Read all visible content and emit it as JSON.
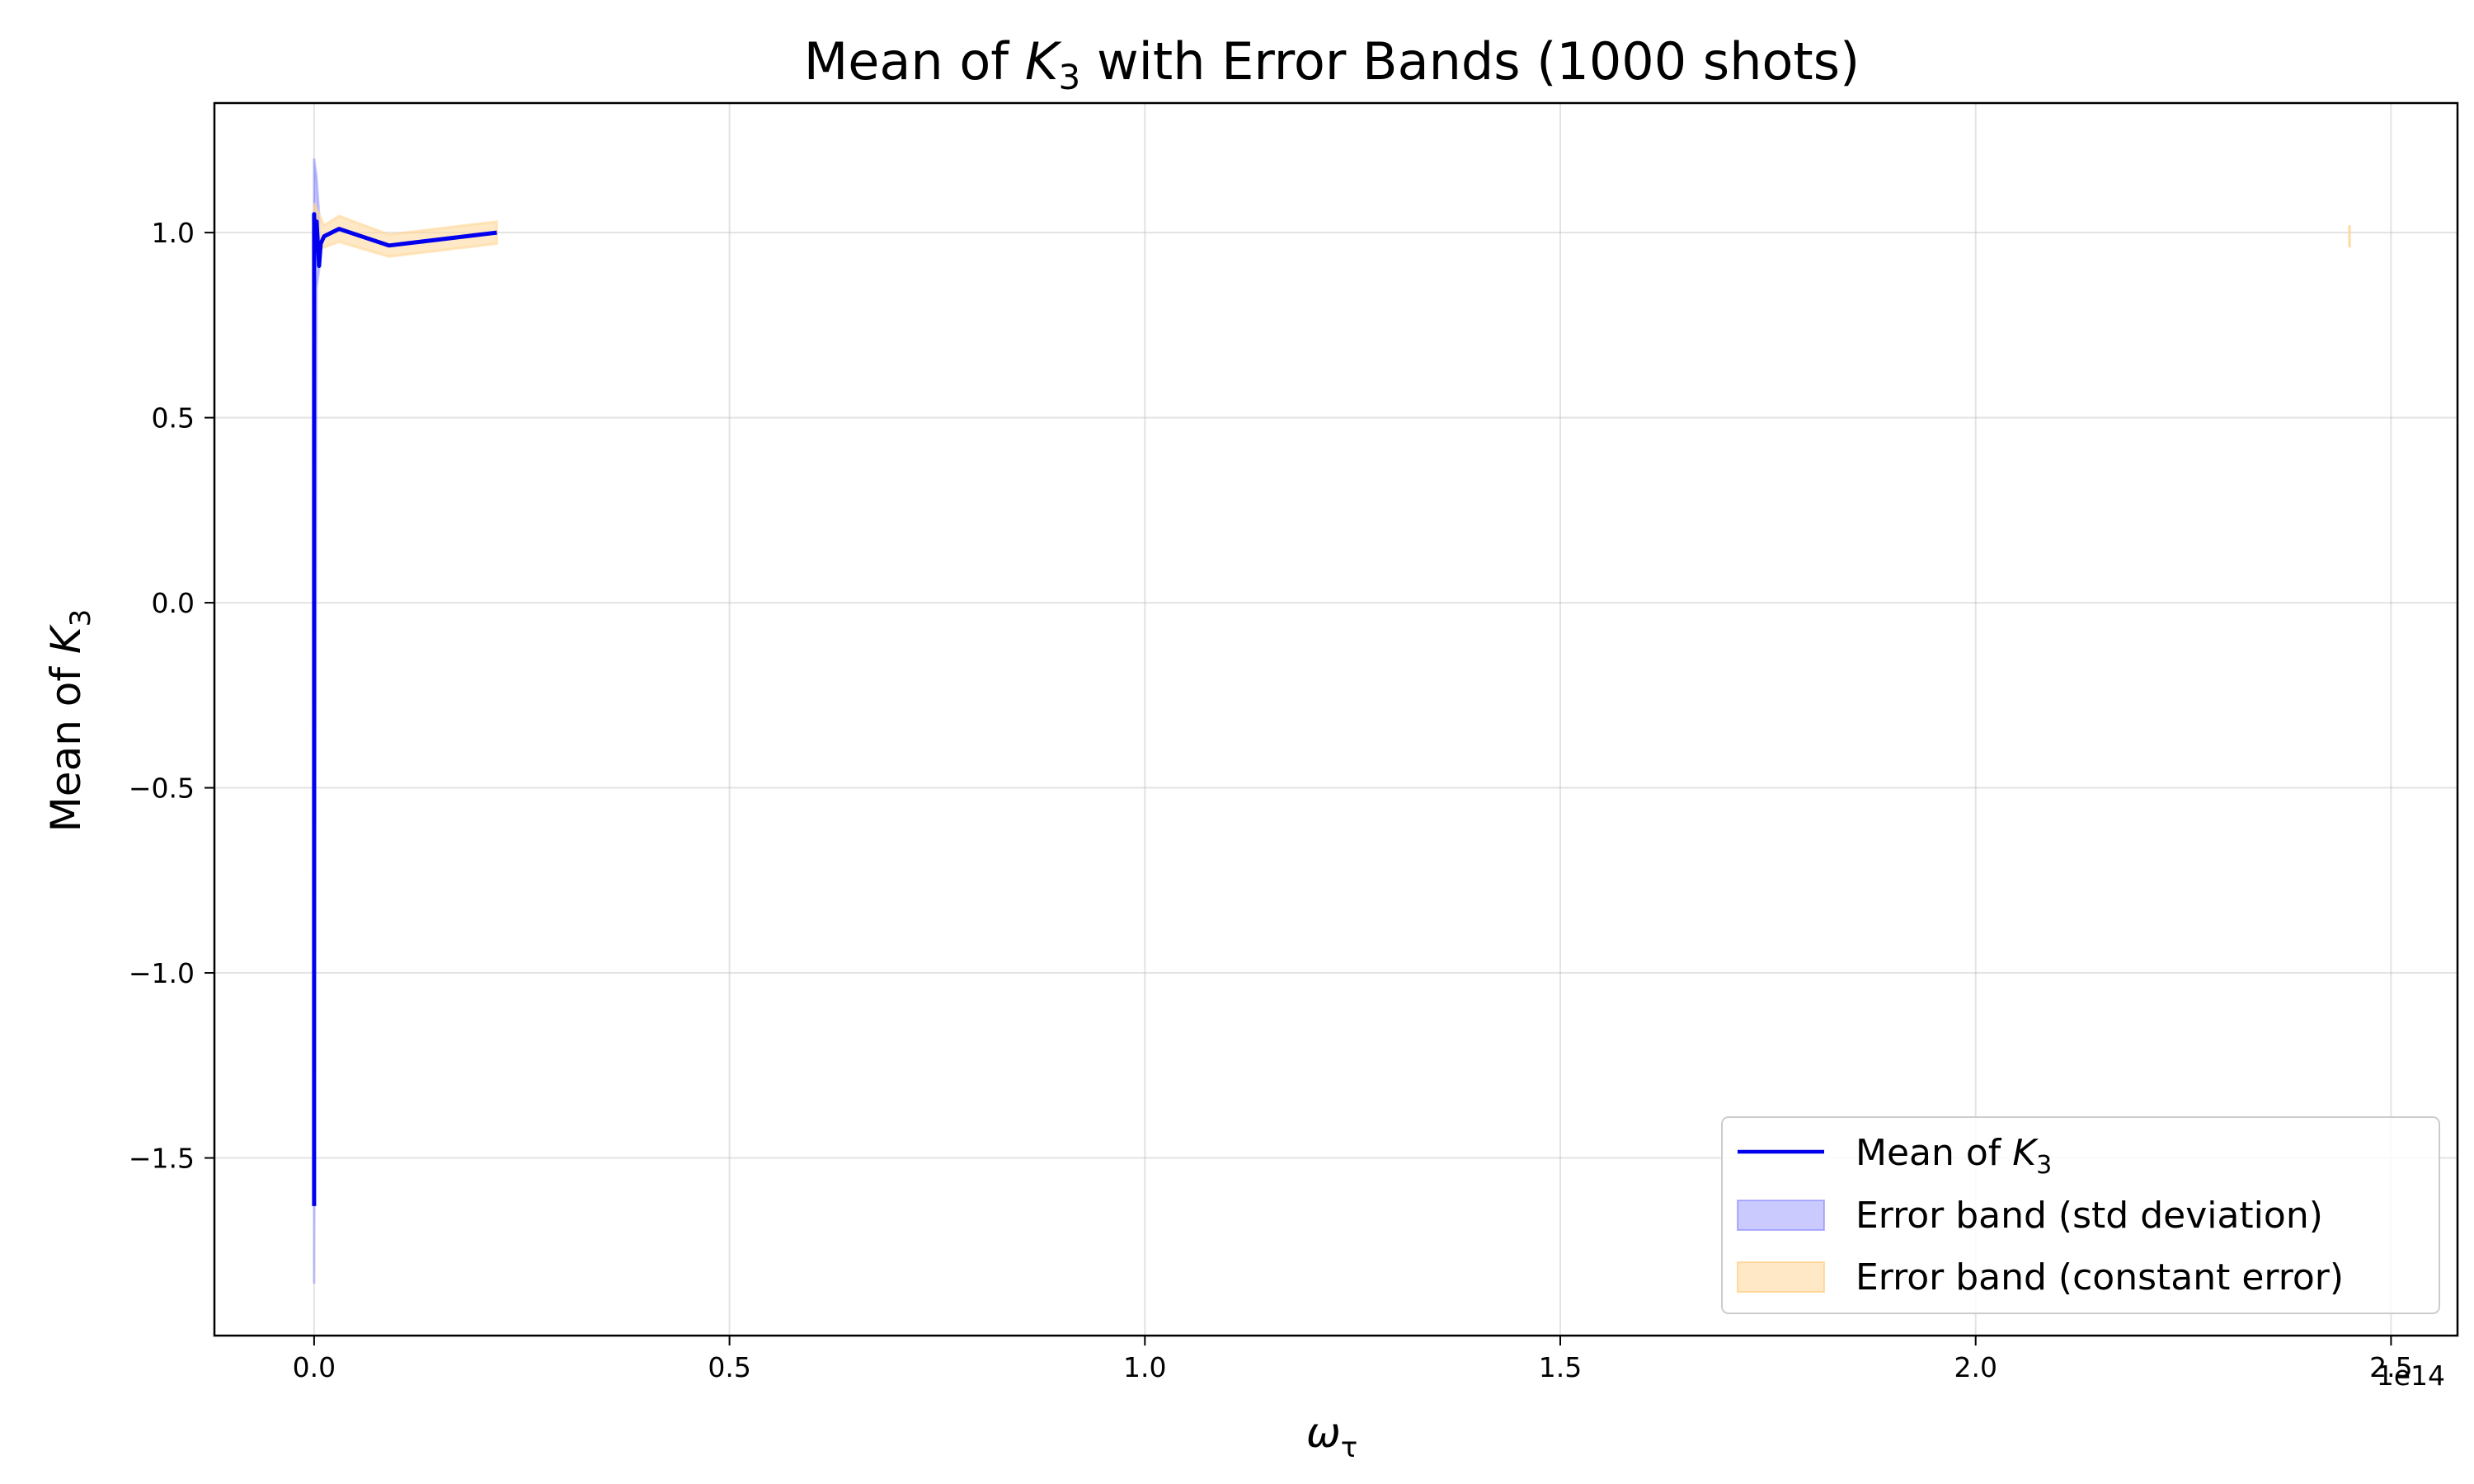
{
  "chart_data": {
    "type": "line",
    "title_parts": {
      "prefix": "Mean of ",
      "var": "K",
      "sub": "3",
      "suffix": " with Error Bands (1000 shots)"
    },
    "xlabel_parts": {
      "var": "ω",
      "sub": "τ"
    },
    "ylabel_parts": {
      "prefix": "Mean of ",
      "var": "K",
      "sub": "3"
    },
    "x_offset_label": "1e14",
    "x_scale": 100000000000000.0,
    "xlim": [
      -0.12,
      2.58
    ],
    "ylim": [
      -1.98,
      1.35
    ],
    "xticks": [
      0.0,
      0.5,
      1.0,
      1.5,
      2.0,
      2.5
    ],
    "xtick_labels": [
      "0.0",
      "0.5",
      "1.0",
      "1.5",
      "2.0",
      "2.5"
    ],
    "yticks": [
      1.0,
      0.5,
      0.0,
      -0.5,
      -1.0,
      -1.5
    ],
    "ytick_labels": [
      "1.0",
      "0.5",
      "0.0",
      "−0.5",
      "−1.0",
      "−1.5"
    ],
    "grid": true,
    "legend_position": "lower right",
    "series": [
      {
        "name_parts": {
          "prefix": "Mean of ",
          "var": "K",
          "sub": "3"
        },
        "kind": "line",
        "color": "#0000ee",
        "points": [
          [
            0.0,
            -1.63
          ],
          [
            0.0,
            1.05
          ],
          [
            0.001,
            0.95
          ],
          [
            0.003,
            1.03
          ],
          [
            0.006,
            0.91
          ],
          [
            0.008,
            0.97
          ],
          [
            0.012,
            0.99
          ],
          [
            0.03,
            1.01
          ],
          [
            0.09,
            0.965
          ],
          [
            0.22,
            1.0
          ]
        ]
      },
      {
        "name": "Error band (std deviation)",
        "kind": "band",
        "color": "#6666ff",
        "opacity": 0.35,
        "points": [
          [
            0.0,
            -1.84,
            1.2
          ],
          [
            0.003,
            0.85,
            1.15
          ],
          [
            0.006,
            0.9,
            1.05
          ]
        ]
      },
      {
        "name": "Error band (constant error)",
        "kind": "band",
        "color": "#ffd596",
        "opacity": 0.55,
        "points": [
          [
            0.0,
            0.96,
            1.08
          ],
          [
            0.012,
            0.96,
            1.02
          ],
          [
            0.03,
            0.975,
            1.045
          ],
          [
            0.09,
            0.935,
            0.995
          ],
          [
            0.22,
            0.97,
            1.03
          ]
        ],
        "isolated": [
          [
            2.45,
            0.96,
            1.02
          ]
        ]
      }
    ]
  }
}
